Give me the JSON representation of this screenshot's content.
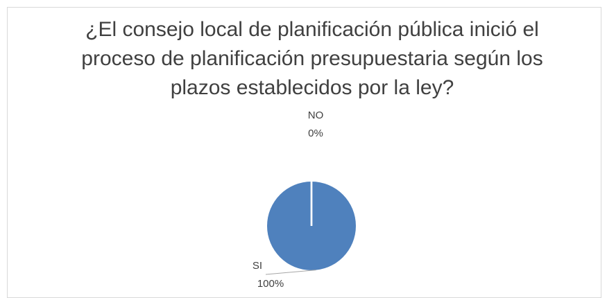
{
  "chart_data": {
    "type": "pie",
    "title": "¿El consejo local de planificación pública inició el proceso de planificación presupuestaria según los plazos establecidos por la ley?",
    "categories": [
      "SI",
      "NO"
    ],
    "values": [
      100,
      0
    ],
    "value_labels": [
      "100%",
      "0%"
    ],
    "colors": [
      "#4f81bd",
      "#c0504d"
    ]
  }
}
